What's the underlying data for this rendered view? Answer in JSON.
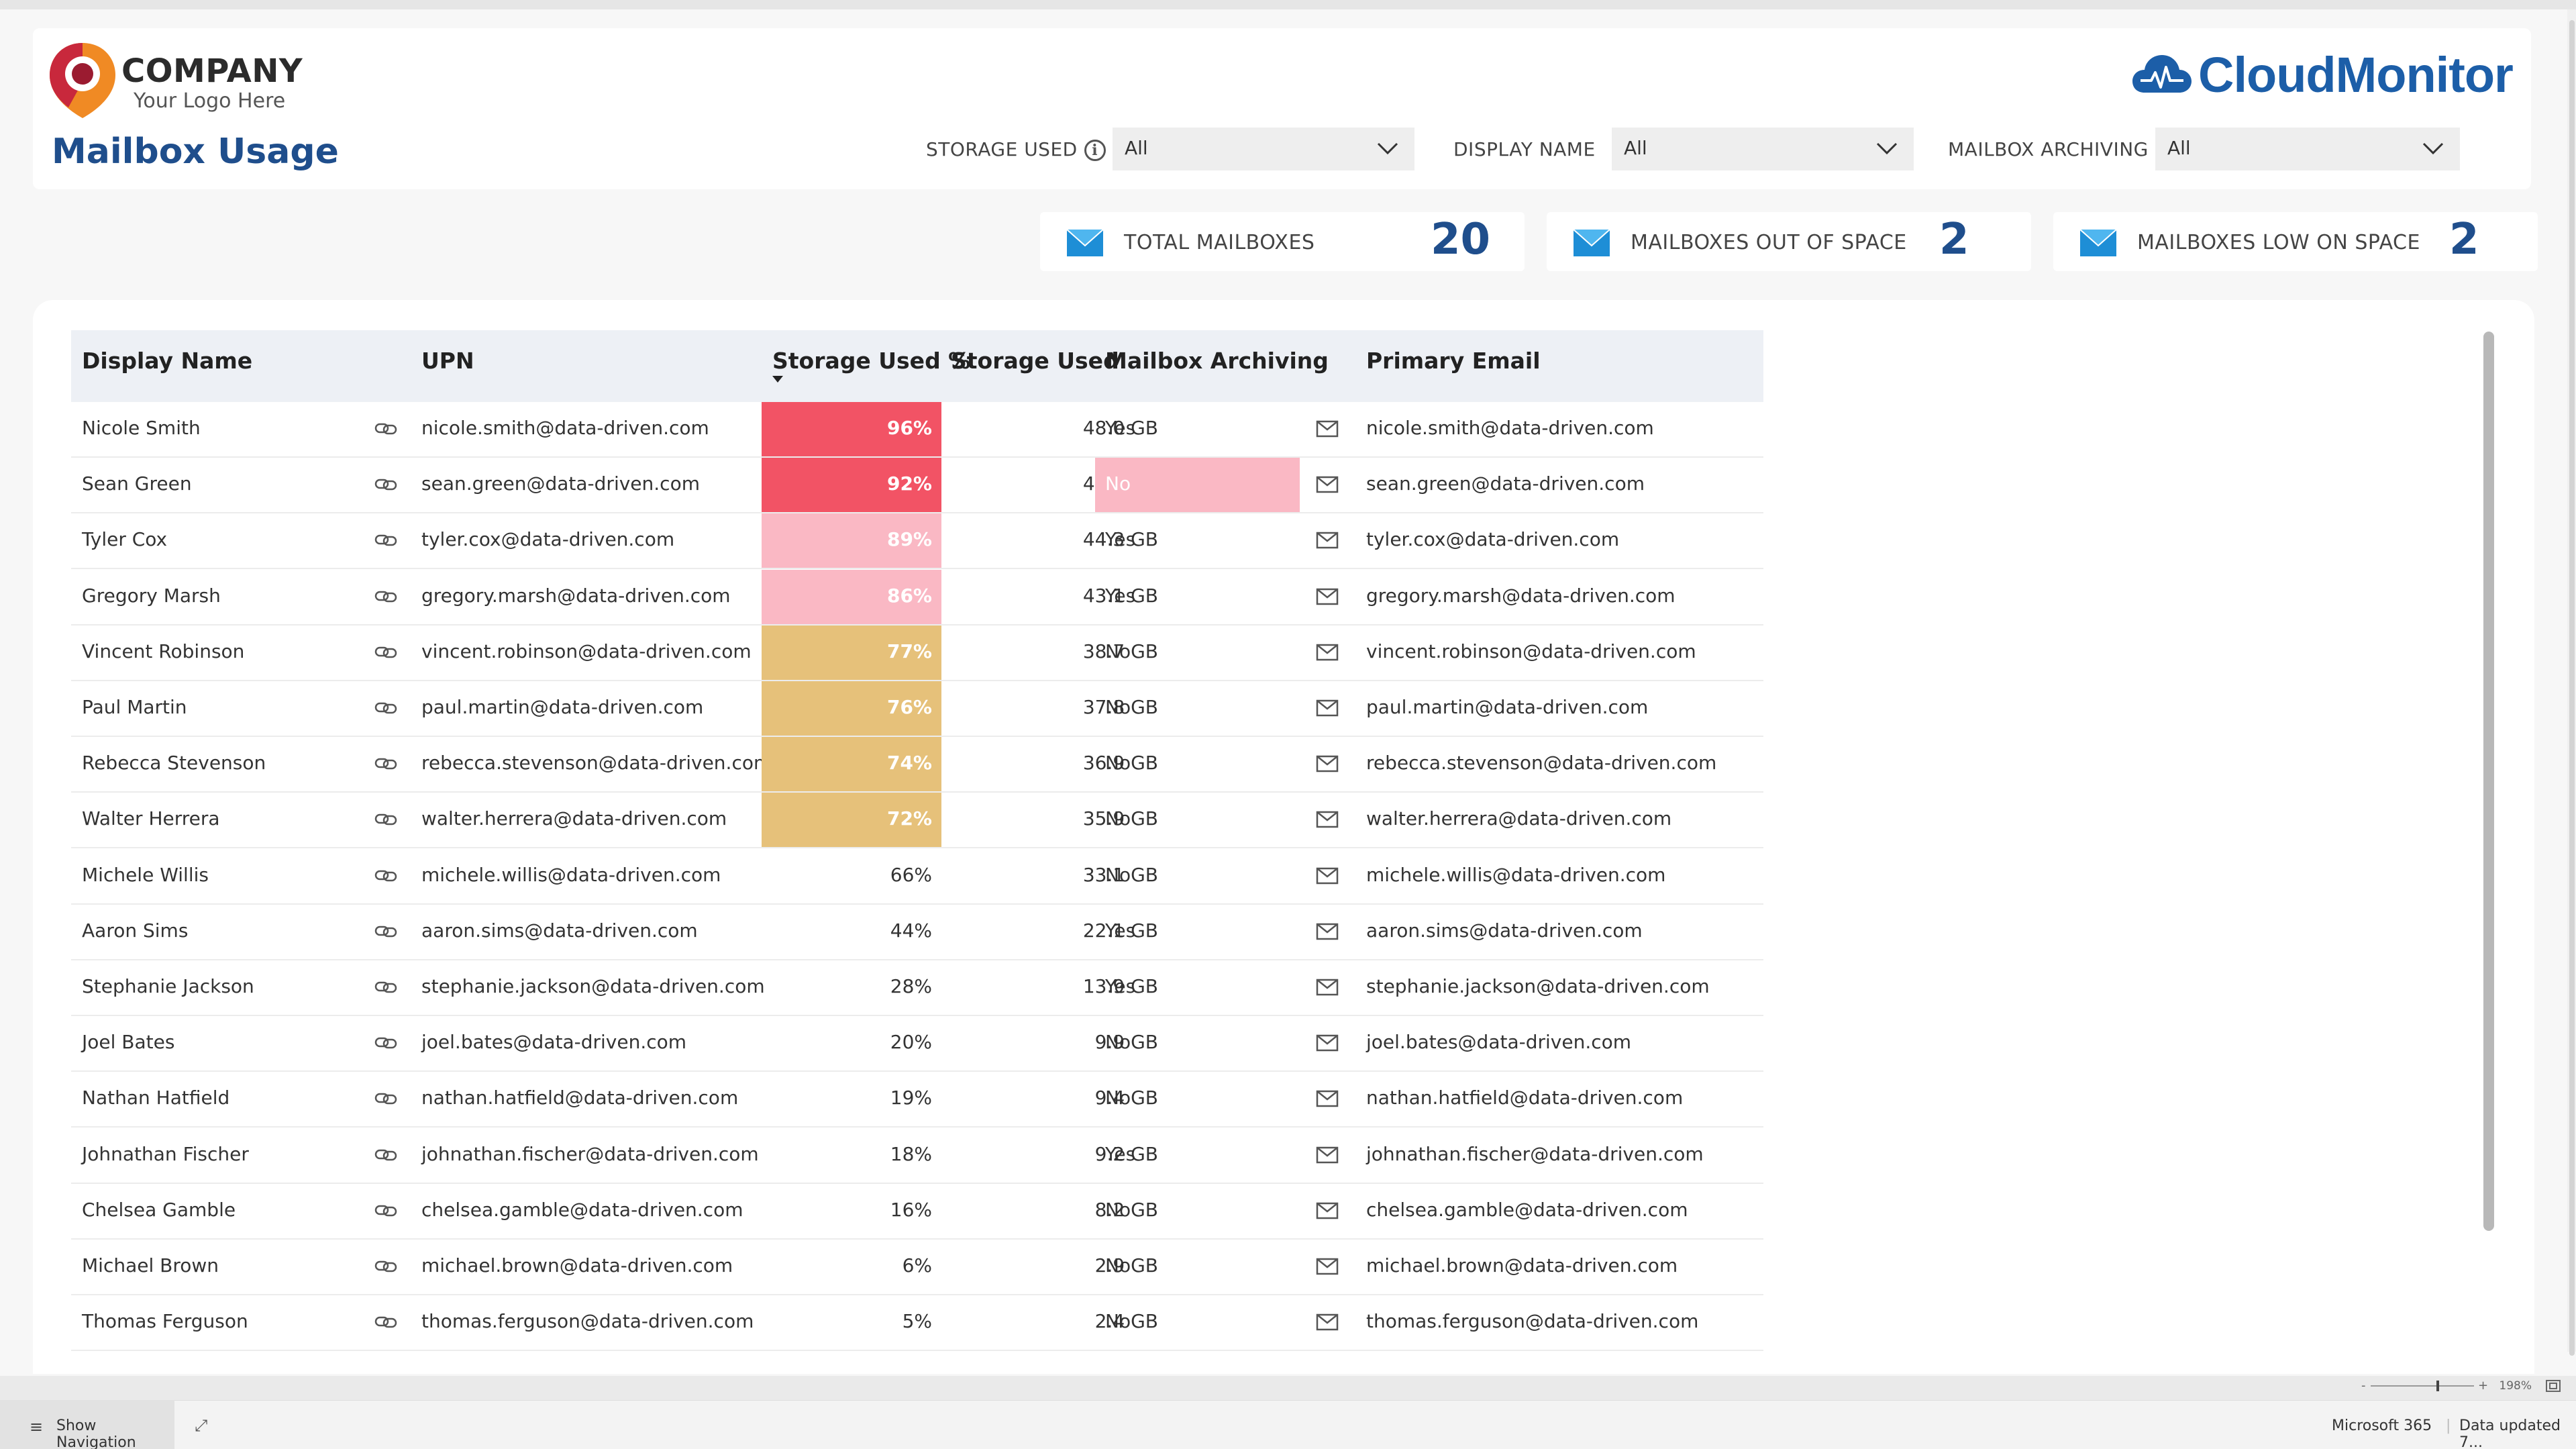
{
  "header": {
    "company_name": "COMPANY",
    "company_tagline": "Your Logo Here",
    "page_title": "Mailbox Usage",
    "brand": "CloudMonitor"
  },
  "filters": {
    "storage_used": {
      "label": "STORAGE USED",
      "value": "All"
    },
    "display_name": {
      "label": "DISPLAY NAME",
      "value": "All"
    },
    "mailbox_archiving": {
      "label": "MAILBOX ARCHIVING",
      "value": "All"
    }
  },
  "kpis": {
    "total": {
      "label": "TOTAL MAILBOXES",
      "value": "20"
    },
    "out_of_space": {
      "label": "MAILBOXES OUT OF SPACE",
      "value": "2"
    },
    "low_on_space": {
      "label": "MAILBOXES LOW ON SPACE",
      "value": "2"
    }
  },
  "table": {
    "columns": [
      "Display Name",
      "UPN",
      "Storage Used %",
      "Storage Used",
      "Mailbox Archiving",
      "Primary Email"
    ],
    "sort_column": "Storage Used %",
    "rows": [
      {
        "name": "Nicole Smith",
        "upn": "nicole.smith@data-driven.com",
        "pct": "96%",
        "gb": "48.0 GB",
        "archiving": "Yes",
        "email": "nicole.smith@data-driven.com",
        "pct_color": "#f25365",
        "arch_color": ""
      },
      {
        "name": "Sean Green",
        "upn": "sean.green@data-driven.com",
        "pct": "92%",
        "gb": "45.9 GB",
        "archiving": "No",
        "email": "sean.green@data-driven.com",
        "pct_color": "#f25365",
        "arch_color": "#fab8c4"
      },
      {
        "name": "Tyler Cox",
        "upn": "tyler.cox@data-driven.com",
        "pct": "89%",
        "gb": "44.3 GB",
        "archiving": "Yes",
        "email": "tyler.cox@data-driven.com",
        "pct_color": "#fab8c4",
        "arch_color": ""
      },
      {
        "name": "Gregory Marsh",
        "upn": "gregory.marsh@data-driven.com",
        "pct": "86%",
        "gb": "43.1 GB",
        "archiving": "Yes",
        "email": "gregory.marsh@data-driven.com",
        "pct_color": "#fab8c4",
        "arch_color": ""
      },
      {
        "name": "Vincent Robinson",
        "upn": "vincent.robinson@data-driven.com",
        "pct": "77%",
        "gb": "38.7 GB",
        "archiving": "No",
        "email": "vincent.robinson@data-driven.com",
        "pct_color": "#e6c17a",
        "arch_color": ""
      },
      {
        "name": "Paul Martin",
        "upn": "paul.martin@data-driven.com",
        "pct": "76%",
        "gb": "37.8 GB",
        "archiving": "No",
        "email": "paul.martin@data-driven.com",
        "pct_color": "#e6c17a",
        "arch_color": ""
      },
      {
        "name": "Rebecca Stevenson",
        "upn": "rebecca.stevenson@data-driven.com",
        "pct": "74%",
        "gb": "36.9 GB",
        "archiving": "No",
        "email": "rebecca.stevenson@data-driven.com",
        "pct_color": "#e6c17a",
        "arch_color": ""
      },
      {
        "name": "Walter Herrera",
        "upn": "walter.herrera@data-driven.com",
        "pct": "72%",
        "gb": "35.9 GB",
        "archiving": "No",
        "email": "walter.herrera@data-driven.com",
        "pct_color": "#e6c17a",
        "arch_color": ""
      },
      {
        "name": "Michele Willis",
        "upn": "michele.willis@data-driven.com",
        "pct": "66%",
        "gb": "33.1 GB",
        "archiving": "No",
        "email": "michele.willis@data-driven.com",
        "pct_color": "",
        "arch_color": ""
      },
      {
        "name": "Aaron Sims",
        "upn": "aaron.sims@data-driven.com",
        "pct": "44%",
        "gb": "22.1 GB",
        "archiving": "Yes",
        "email": "aaron.sims@data-driven.com",
        "pct_color": "",
        "arch_color": ""
      },
      {
        "name": "Stephanie Jackson",
        "upn": "stephanie.jackson@data-driven.com",
        "pct": "28%",
        "gb": "13.9 GB",
        "archiving": "Yes",
        "email": "stephanie.jackson@data-driven.com",
        "pct_color": "",
        "arch_color": ""
      },
      {
        "name": "Joel Bates",
        "upn": "joel.bates@data-driven.com",
        "pct": "20%",
        "gb": "9.9 GB",
        "archiving": "No",
        "email": "joel.bates@data-driven.com",
        "pct_color": "",
        "arch_color": ""
      },
      {
        "name": "Nathan Hatfield",
        "upn": "nathan.hatfield@data-driven.com",
        "pct": "19%",
        "gb": "9.4 GB",
        "archiving": "No",
        "email": "nathan.hatfield@data-driven.com",
        "pct_color": "",
        "arch_color": ""
      },
      {
        "name": "Johnathan Fischer",
        "upn": "johnathan.fischer@data-driven.com",
        "pct": "18%",
        "gb": "9.2 GB",
        "archiving": "Yes",
        "email": "johnathan.fischer@data-driven.com",
        "pct_color": "",
        "arch_color": ""
      },
      {
        "name": "Chelsea Gamble",
        "upn": "chelsea.gamble@data-driven.com",
        "pct": "16%",
        "gb": "8.2 GB",
        "archiving": "No",
        "email": "chelsea.gamble@data-driven.com",
        "pct_color": "",
        "arch_color": ""
      },
      {
        "name": "Michael Brown",
        "upn": "michael.brown@data-driven.com",
        "pct": "6%",
        "gb": "2.9 GB",
        "archiving": "No",
        "email": "michael.brown@data-driven.com",
        "pct_color": "",
        "arch_color": ""
      },
      {
        "name": "Thomas Ferguson",
        "upn": "thomas.ferguson@data-driven.com",
        "pct": "5%",
        "gb": "2.4 GB",
        "archiving": "No",
        "email": "thomas.ferguson@data-driven.com",
        "pct_color": "",
        "arch_color": ""
      }
    ]
  },
  "zoom": {
    "level": "198%"
  },
  "bottom_bar": {
    "show_navigation": "Show Navigation",
    "app": "Microsoft 365",
    "data_updated": "Data updated 7..."
  },
  "colors": {
    "brand_blue": "#1c5ea8",
    "title_blue": "#1f4e8c",
    "logo_red": "#c8283c",
    "logo_orange": "#f08a24"
  }
}
